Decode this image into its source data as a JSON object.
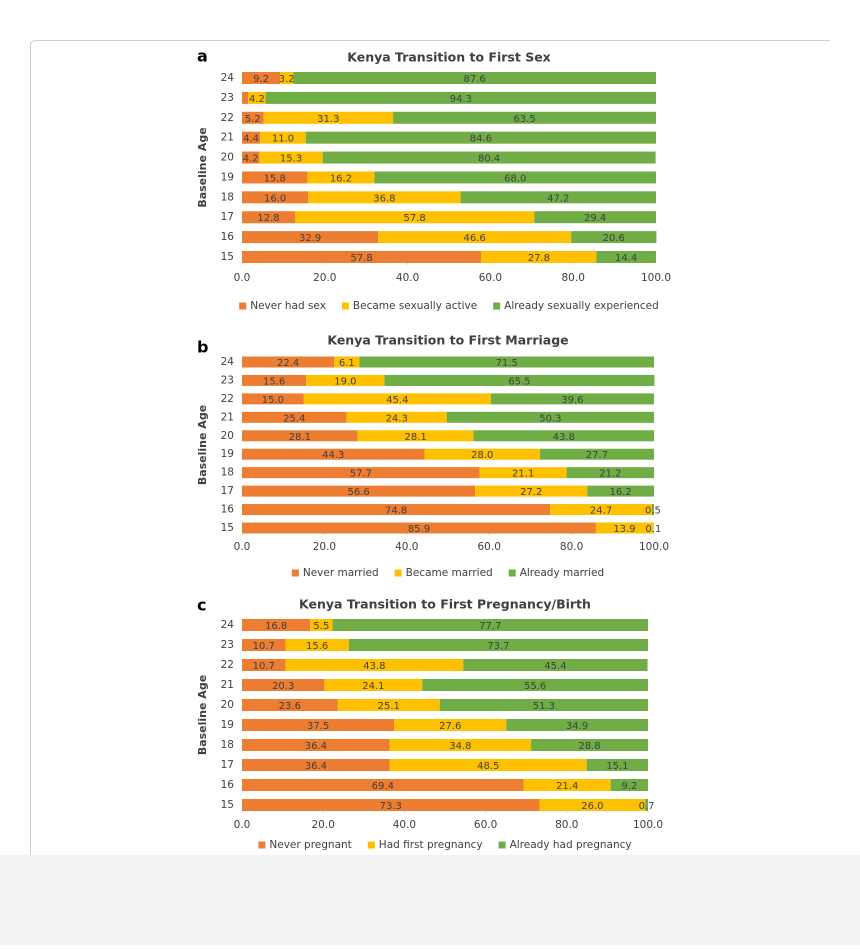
{
  "chart_data": [
    {
      "type": "bar",
      "orientation": "horizontal",
      "stacked": true,
      "panel_label": "a",
      "title": "Kenya Transition to First Sex",
      "y_label": "Baseline Age",
      "categories": [
        "15",
        "16",
        "17",
        "18",
        "19",
        "20",
        "21",
        "22",
        "23",
        "24"
      ],
      "series": [
        {
          "name": "Never had sex",
          "color": "#ed7d31",
          "values": [
            57.8,
            32.9,
            12.8,
            16.0,
            15.8,
            4.2,
            4.4,
            5.2,
            1.5,
            9.2
          ],
          "value_labels": [
            "57.8",
            "32.9",
            "12.8",
            "16.0",
            "15.8",
            "4.2",
            "4.4",
            "5.2",
            null,
            "9.2"
          ]
        },
        {
          "name": "Became sexually active",
          "color": "#ffc000",
          "values": [
            27.8,
            46.6,
            57.8,
            36.8,
            16.2,
            15.3,
            11.0,
            31.3,
            4.2,
            3.2
          ],
          "value_labels": [
            "27.8",
            "46.6",
            "57.8",
            "36.8",
            "16.2",
            "15.3",
            "11.0",
            "31.3",
            "4.2",
            "3.2"
          ]
        },
        {
          "name": "Already sexually experienced",
          "color": "#70ad47",
          "values": [
            14.4,
            20.6,
            29.4,
            47.2,
            68.0,
            80.4,
            84.6,
            63.5,
            94.3,
            87.6
          ],
          "value_labels": [
            "14.4",
            "20.6",
            "29.4",
            "47.2",
            "68.0",
            "80.4",
            "84.6",
            "63.5",
            "94.3",
            "87.6"
          ]
        }
      ],
      "xlim": [
        0,
        100
      ],
      "xticks": [
        {
          "value": 0,
          "label": "0.0"
        },
        {
          "value": 20,
          "label": "20.0"
        },
        {
          "value": 40,
          "label": "40.0"
        },
        {
          "value": 60,
          "label": "60.0"
        },
        {
          "value": 80,
          "label": "80.0"
        },
        {
          "value": 100,
          "label": "100.0"
        }
      ],
      "legend": "bottom"
    },
    {
      "type": "bar",
      "orientation": "horizontal",
      "stacked": true,
      "panel_label": "b",
      "title": "Kenya Transition to First Marriage",
      "y_label": "Baseline Age",
      "categories": [
        "15",
        "16",
        "17",
        "18",
        "19",
        "20",
        "21",
        "22",
        "23",
        "24"
      ],
      "series": [
        {
          "name": "Never married",
          "color": "#ed7d31",
          "values": [
            85.9,
            74.8,
            56.6,
            57.7,
            44.3,
            28.1,
            25.4,
            15.0,
            15.6,
            22.4
          ],
          "value_labels": [
            "85.9",
            "74.8",
            "56.6",
            "57.7",
            "44.3",
            "28.1",
            "25.4",
            "15.0",
            "15.6",
            "22.4"
          ]
        },
        {
          "name": "Became married",
          "color": "#ffc000",
          "values": [
            13.9,
            24.7,
            27.2,
            21.1,
            28.0,
            28.1,
            24.3,
            45.4,
            19.0,
            6.1
          ],
          "value_labels": [
            "13.9",
            "24.7",
            "27.2",
            "21.1",
            "28.0",
            "28.1",
            "24.3",
            "45.4",
            "19.0",
            "6.1"
          ]
        },
        {
          "name": "Already married",
          "color": "#70ad47",
          "values": [
            0.1,
            0.5,
            16.2,
            21.2,
            27.7,
            43.8,
            50.3,
            39.6,
            65.5,
            71.5
          ],
          "value_labels": [
            "0.1",
            "0.5",
            "16.2",
            "21.2",
            "27.7",
            "43.8",
            "50.3",
            "39.6",
            "65.5",
            "71.5"
          ]
        }
      ],
      "xlim": [
        0,
        100
      ],
      "xticks": [
        {
          "value": 0,
          "label": "0.0"
        },
        {
          "value": 20,
          "label": "20.0"
        },
        {
          "value": 40,
          "label": "40.0"
        },
        {
          "value": 60,
          "label": "60.0"
        },
        {
          "value": 80,
          "label": "80.0"
        },
        {
          "value": 100,
          "label": "100.0"
        }
      ],
      "legend": "bottom"
    },
    {
      "type": "bar",
      "orientation": "horizontal",
      "stacked": true,
      "panel_label": "c",
      "title": "Kenya Transition to First Pregnancy/Birth",
      "y_label": "Baseline Age",
      "categories": [
        "15",
        "16",
        "17",
        "18",
        "19",
        "20",
        "21",
        "22",
        "23",
        "24"
      ],
      "series": [
        {
          "name": "Never pregnant",
          "color": "#ed7d31",
          "values": [
            73.3,
            69.4,
            36.4,
            36.4,
            37.5,
            23.6,
            20.3,
            10.7,
            10.7,
            16.8
          ],
          "value_labels": [
            "73.3",
            "69.4",
            "36.4",
            "36.4",
            "37.5",
            "23.6",
            "20.3",
            "10.7",
            "10.7",
            "16.8"
          ]
        },
        {
          "name": "Had first pregnancy",
          "color": "#ffc000",
          "values": [
            26.0,
            21.4,
            48.5,
            34.8,
            27.6,
            25.1,
            24.1,
            43.8,
            15.6,
            5.5
          ],
          "value_labels": [
            "26.0",
            "21.4",
            "48.5",
            "34.8",
            "27.6",
            "25.1",
            "24.1",
            "43.8",
            "15.6",
            "5.5"
          ]
        },
        {
          "name": "Already had pregnancy",
          "color": "#70ad47",
          "values": [
            0.7,
            9.2,
            15.1,
            28.8,
            34.9,
            51.3,
            55.6,
            45.4,
            73.7,
            77.7
          ],
          "value_labels": [
            "0.7",
            "9.2",
            "15.1",
            "28.8",
            "34.9",
            "51.3",
            "55.6",
            "45.4",
            "73.7",
            "77.7"
          ]
        }
      ],
      "xlim": [
        0,
        100
      ],
      "xticks": [
        {
          "value": 0,
          "label": "0.0"
        },
        {
          "value": 20,
          "label": "20.0"
        },
        {
          "value": 40,
          "label": "40.0"
        },
        {
          "value": 60,
          "label": "60.0"
        },
        {
          "value": 80,
          "label": "80.0"
        },
        {
          "value": 100,
          "label": "100.0"
        }
      ],
      "legend": "bottom"
    }
  ]
}
